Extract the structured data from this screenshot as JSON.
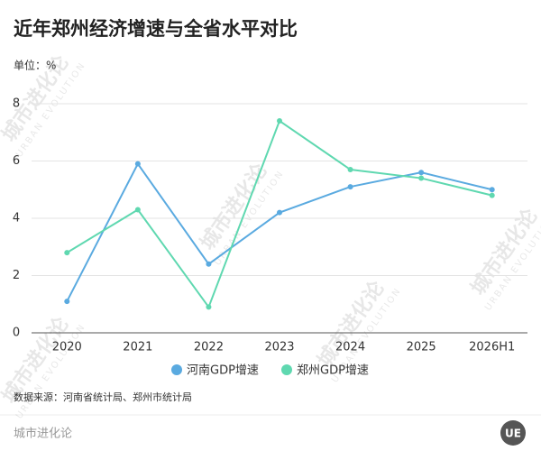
{
  "chart_data": {
    "type": "line",
    "title": "近年郑州经济增速与全省水平对比",
    "unit_label": "单位：%",
    "categories": [
      "2020",
      "2021",
      "2022",
      "2023",
      "2024",
      "2025",
      "2026H1"
    ],
    "series": [
      {
        "name": "河南GDP增速",
        "color": "#5aaae0",
        "values": [
          1.1,
          5.9,
          2.4,
          4.2,
          5.1,
          5.6,
          5.0
        ]
      },
      {
        "name": "郑州GDP增速",
        "color": "#5fd8b0",
        "values": [
          2.8,
          4.3,
          0.9,
          7.4,
          5.7,
          5.4,
          4.8
        ]
      }
    ],
    "ylim": [
      0,
      8
    ],
    "yticks": [
      0,
      2,
      4,
      6,
      8
    ],
    "grid": true,
    "legend": "bottom",
    "source": "数据来源：河南省统计局、郑州市统计局"
  },
  "watermark": {
    "cn": "城市进化论",
    "en": "URBAN EVOLUTION"
  },
  "footer": {
    "brand": "城市进化论",
    "logo": "UE"
  }
}
